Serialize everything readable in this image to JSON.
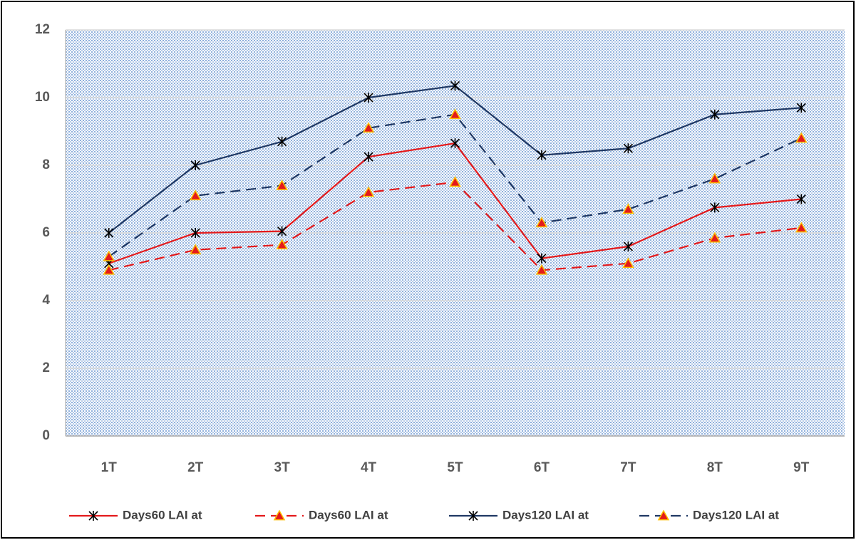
{
  "chart_data": {
    "type": "line",
    "categories": [
      "1T",
      "2T",
      "3T",
      "4T",
      "5T",
      "6T",
      "7T",
      "8T",
      "9T"
    ],
    "ylim": [
      0,
      12
    ],
    "yticks": [
      0,
      2,
      4,
      6,
      8,
      10,
      12
    ],
    "grid": true,
    "legend": "bottom",
    "series": [
      {
        "name": "Days60 LAI at",
        "color": "#e31a1c",
        "marker": "star",
        "dash": false,
        "values": [
          5.1,
          6.0,
          6.05,
          8.25,
          8.65,
          5.25,
          5.6,
          6.75,
          7.0
        ]
      },
      {
        "name": "Days60 LAI at",
        "color": "#e31a1c",
        "marker": "triangle",
        "dash": true,
        "values": [
          4.9,
          5.5,
          5.65,
          7.2,
          7.5,
          4.9,
          5.1,
          5.85,
          6.15
        ]
      },
      {
        "name": "Days120 LAI at",
        "color": "#1f3864",
        "marker": "star",
        "dash": false,
        "values": [
          6.0,
          8.0,
          8.7,
          10.0,
          10.35,
          8.3,
          8.5,
          9.5,
          9.7
        ]
      },
      {
        "name": "Days120 LAI at",
        "color": "#1f3864",
        "marker": "triangle",
        "dash": true,
        "values": [
          5.3,
          7.1,
          7.4,
          9.1,
          9.5,
          6.3,
          6.7,
          7.6,
          8.8
        ]
      }
    ]
  }
}
